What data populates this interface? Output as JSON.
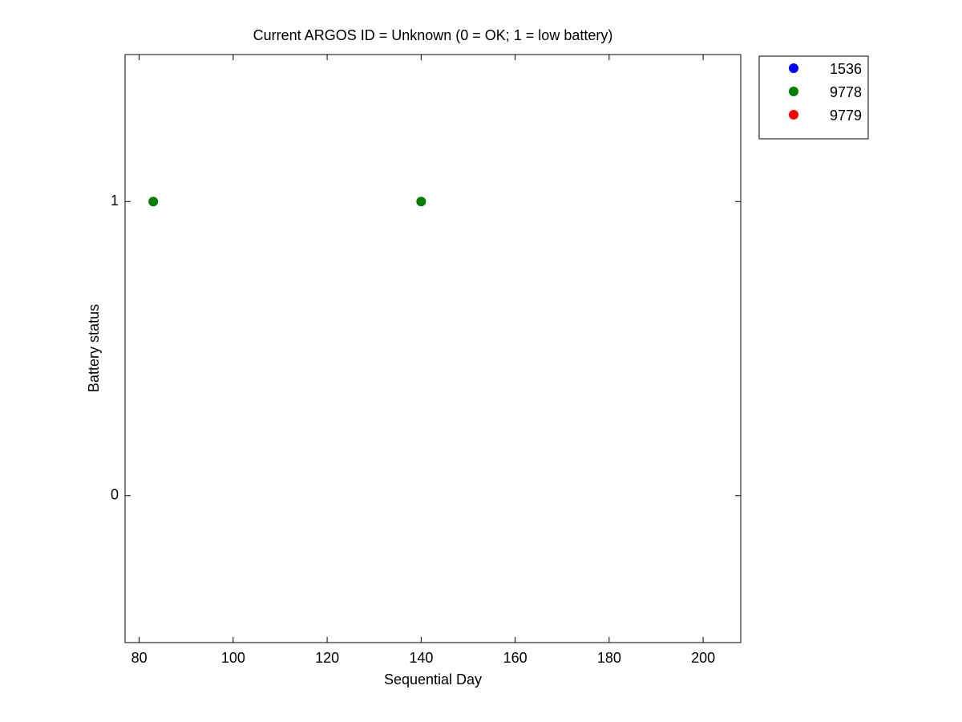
{
  "chart_data": {
    "type": "scatter",
    "title": "Current ARGOS ID = Unknown  (0 = OK; 1 = low battery)",
    "x_label": "Sequential Day",
    "y_label": "Battery status",
    "xlim": [
      77,
      208
    ],
    "xticks": [
      80,
      100,
      120,
      140,
      160,
      180,
      200
    ],
    "ylim": [
      -0.5,
      1.5
    ],
    "yticks": [
      0,
      1
    ],
    "legend": "outside-top-right",
    "series": [
      {
        "name": "1536",
        "color": "#0000ff",
        "x": [],
        "values": []
      },
      {
        "name": "9778",
        "color": "#008000",
        "x": [
          83,
          140
        ],
        "values": [
          1,
          1
        ]
      },
      {
        "name": "9779",
        "color": "#ff0000",
        "x": [],
        "values": []
      }
    ]
  }
}
